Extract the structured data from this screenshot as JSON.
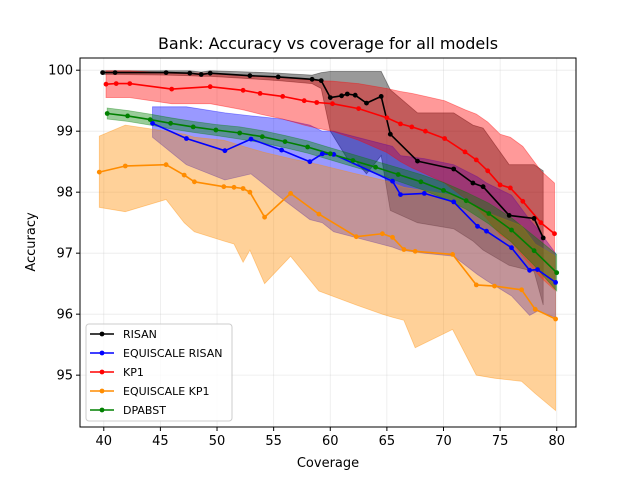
{
  "chart_data": {
    "type": "line",
    "title": "Bank: Accuracy vs coverage for all models",
    "xlabel": "Coverage",
    "ylabel": "Accuracy",
    "xlim": [
      37.9,
      81.7
    ],
    "ylim": [
      94.15,
      100.2
    ],
    "xticks": [
      40,
      45,
      50,
      55,
      60,
      65,
      70,
      75,
      80
    ],
    "yticks": [
      95,
      96,
      97,
      98,
      99,
      100
    ],
    "grid": true,
    "legend": "lower-left",
    "series": [
      {
        "name": "RISAN",
        "color": "#000000",
        "x": [
          39.9,
          41.0,
          45.5,
          47.6,
          48.6,
          49.4,
          52.9,
          55.4,
          58.4,
          59.2,
          60.0,
          61.0,
          61.5,
          62.2,
          63.2,
          64.5,
          65.3,
          67.7,
          70.9,
          72.6,
          73.5,
          75.8,
          78.0,
          78.8
        ],
        "y": [
          99.96,
          99.96,
          99.96,
          99.95,
          99.93,
          99.95,
          99.91,
          99.89,
          99.85,
          99.83,
          99.55,
          99.58,
          99.61,
          99.59,
          99.46,
          99.57,
          98.95,
          98.51,
          98.38,
          98.15,
          98.09,
          97.62,
          97.57,
          97.25
        ],
        "y_low": [
          99.93,
          99.93,
          99.92,
          99.91,
          99.9,
          99.9,
          99.86,
          99.83,
          99.78,
          99.7,
          99.0,
          98.7,
          98.55,
          98.52,
          98.3,
          98.6,
          97.7,
          97.5,
          97.4,
          97.2,
          97.05,
          96.8,
          96.7,
          96.15
        ],
        "y_high": [
          99.99,
          99.99,
          99.99,
          99.99,
          99.97,
          99.99,
          99.97,
          99.95,
          99.92,
          99.96,
          99.98,
          99.98,
          99.98,
          99.98,
          99.98,
          99.98,
          99.68,
          99.3,
          99.3,
          99.1,
          99.05,
          98.45,
          98.45,
          98.35
        ]
      },
      {
        "name": "EQUISCALE RISAN",
        "color": "#0000ff",
        "x": [
          44.3,
          47.3,
          50.7,
          53.0,
          55.7,
          58.2,
          59.3,
          60.3,
          65.5,
          66.2,
          68.3,
          70.9,
          73.0,
          73.8,
          76.0,
          77.6,
          78.3,
          79.9
        ],
        "y": [
          99.13,
          98.88,
          98.68,
          98.87,
          98.69,
          98.5,
          98.63,
          98.62,
          98.18,
          97.96,
          97.98,
          97.84,
          97.44,
          97.36,
          97.09,
          96.72,
          96.73,
          96.52
        ],
        "y_low": [
          98.9,
          98.45,
          98.2,
          98.3,
          97.9,
          97.55,
          97.5,
          97.35,
          97.1,
          97.05,
          97.0,
          96.95,
          96.65,
          96.55,
          96.3,
          95.98,
          96.05,
          95.95
        ],
        "y_high": [
          99.4,
          99.4,
          99.3,
          99.25,
          99.2,
          99.1,
          99.0,
          99.0,
          98.75,
          98.6,
          98.55,
          98.45,
          98.25,
          98.15,
          97.95,
          97.55,
          97.4,
          97.0
        ]
      },
      {
        "name": "KP1",
        "color": "#ff0000",
        "x": [
          40.2,
          41.1,
          42.3,
          46.0,
          49.4,
          52.3,
          53.8,
          55.8,
          57.7,
          58.8,
          60.2,
          62.5,
          65.0,
          66.2,
          67.2,
          68.4,
          70.1,
          71.9,
          72.9,
          73.9,
          75.0,
          75.9,
          77.0,
          78.6,
          79.8
        ],
        "y": [
          99.77,
          99.78,
          99.78,
          99.69,
          99.73,
          99.67,
          99.62,
          99.57,
          99.5,
          99.47,
          99.45,
          99.37,
          99.22,
          99.12,
          99.07,
          99.0,
          98.88,
          98.66,
          98.53,
          98.35,
          98.12,
          98.07,
          97.85,
          97.5,
          97.32
        ],
        "y_low": [
          99.55,
          99.55,
          99.55,
          99.45,
          99.45,
          99.35,
          99.28,
          99.2,
          99.1,
          99.05,
          99.0,
          98.85,
          98.65,
          98.5,
          98.4,
          98.3,
          98.15,
          97.9,
          97.75,
          97.55,
          97.3,
          97.2,
          96.95,
          96.6,
          96.4
        ],
        "y_high": [
          99.99,
          99.99,
          99.99,
          99.95,
          99.95,
          99.92,
          99.9,
          99.88,
          99.85,
          99.83,
          99.82,
          99.78,
          99.7,
          99.65,
          99.62,
          99.57,
          99.5,
          99.35,
          99.28,
          99.15,
          98.95,
          98.9,
          98.75,
          98.35,
          98.15
        ]
      },
      {
        "name": "EQUISCALE KP1",
        "color": "#ff8c00",
        "x": [
          39.6,
          41.9,
          45.5,
          47.1,
          48.0,
          50.6,
          51.5,
          52.3,
          52.9,
          54.2,
          56.5,
          59.0,
          62.3,
          64.6,
          65.5,
          66.5,
          67.5,
          70.8,
          72.9,
          74.5,
          76.9,
          78.1,
          79.9
        ],
        "y": [
          98.33,
          98.43,
          98.45,
          98.28,
          98.17,
          98.09,
          98.08,
          98.06,
          98.0,
          97.59,
          97.98,
          97.64,
          97.27,
          97.32,
          97.26,
          97.06,
          97.03,
          96.98,
          96.48,
          96.46,
          96.4,
          96.08,
          95.92
        ],
        "y_low": [
          97.75,
          97.68,
          97.88,
          97.5,
          97.35,
          97.2,
          97.15,
          96.85,
          97.05,
          96.5,
          96.95,
          96.38,
          96.15,
          96.0,
          95.95,
          95.9,
          95.45,
          95.75,
          95.0,
          94.95,
          94.9,
          94.7,
          94.42
        ],
        "y_high": [
          98.92,
          99.1,
          99.0,
          98.95,
          98.9,
          98.85,
          98.8,
          98.75,
          98.72,
          98.65,
          98.55,
          98.45,
          98.3,
          98.2,
          98.15,
          98.08,
          98.05,
          97.95,
          97.75,
          97.62,
          97.45,
          97.15,
          96.95
        ]
      },
      {
        "name": "DPABST",
        "color": "#008000",
        "x": [
          40.3,
          42.1,
          44.1,
          45.9,
          47.9,
          49.9,
          52.0,
          54.0,
          56.0,
          58.0,
          60.0,
          62.0,
          64.0,
          66.0,
          68.0,
          70.0,
          72.0,
          74.0,
          76.0,
          78.0,
          80.0
        ],
        "y": [
          99.29,
          99.25,
          99.19,
          99.13,
          99.07,
          99.02,
          98.97,
          98.91,
          98.83,
          98.74,
          98.63,
          98.52,
          98.41,
          98.29,
          98.17,
          98.03,
          97.86,
          97.65,
          97.38,
          97.04,
          96.68
        ],
        "y_low": [
          99.2,
          99.16,
          99.1,
          99.04,
          98.98,
          98.93,
          98.87,
          98.81,
          98.73,
          98.64,
          98.53,
          98.42,
          98.31,
          98.18,
          98.05,
          97.9,
          97.72,
          97.48,
          97.18,
          96.8,
          96.38
        ],
        "y_high": [
          99.38,
          99.34,
          99.28,
          99.22,
          99.16,
          99.11,
          99.07,
          99.01,
          98.93,
          98.84,
          98.73,
          98.62,
          98.51,
          98.4,
          98.29,
          98.16,
          98.0,
          97.82,
          97.58,
          97.28,
          96.98
        ]
      }
    ]
  }
}
